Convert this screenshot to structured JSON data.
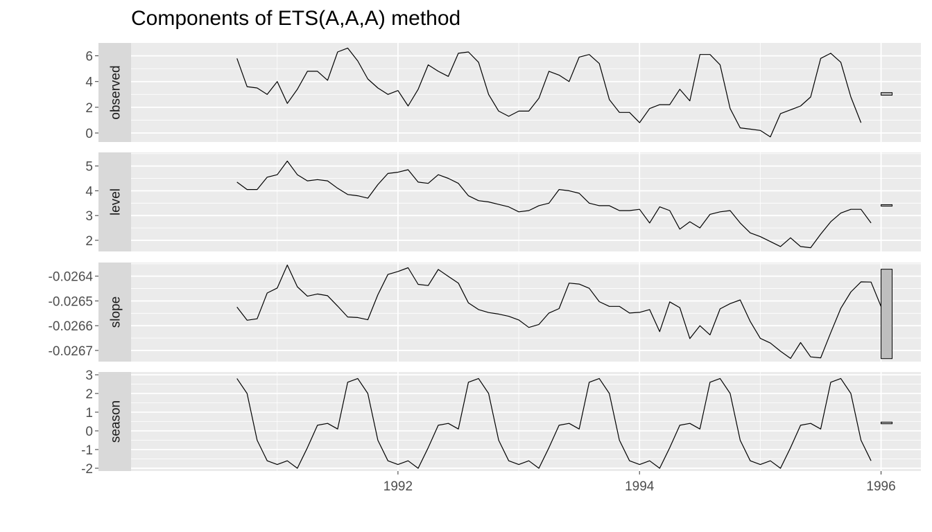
{
  "chart_data": {
    "type": "line",
    "title": "Components of ETS(A,A,A) method",
    "xlabel": "",
    "ylabel": "",
    "x_start": 1990.667,
    "x_step": 0.0833333,
    "xlim": [
      1989.79,
      1996.33
    ],
    "x_ticks": [
      "1992",
      "1994",
      "1996"
    ],
    "grid": true,
    "panels": [
      {
        "name": "observed",
        "ylim": [
          -0.7,
          7.0
        ],
        "y_ticks": [
          "0",
          "2",
          "4",
          "6"
        ],
        "scale_bar": [
          2.94,
          3.14
        ],
        "values": [
          5.8,
          3.6,
          3.5,
          3.0,
          4.0,
          2.3,
          3.4,
          4.8,
          4.8,
          4.1,
          6.3,
          6.6,
          5.6,
          4.2,
          3.5,
          3.0,
          3.3,
          2.1,
          3.4,
          5.3,
          4.8,
          4.4,
          6.2,
          6.3,
          5.5,
          3.0,
          1.7,
          1.3,
          1.7,
          1.7,
          2.7,
          4.8,
          4.5,
          4.0,
          5.9,
          6.1,
          5.4,
          2.6,
          1.6,
          1.6,
          0.8,
          1.9,
          2.2,
          2.2,
          3.4,
          2.5,
          6.1,
          6.1,
          5.3,
          1.9,
          0.4,
          0.3,
          0.2,
          -0.3,
          1.5,
          1.8,
          2.1,
          2.8,
          5.8,
          6.2,
          5.5,
          2.8,
          0.8
        ]
      },
      {
        "name": "level",
        "ylim": [
          1.55,
          5.55
        ],
        "y_ticks": [
          "2",
          "3",
          "4",
          "5"
        ],
        "scale_bar": [
          3.38,
          3.44
        ],
        "values": [
          4.35,
          4.05,
          4.05,
          4.55,
          4.65,
          5.2,
          4.65,
          4.4,
          4.45,
          4.4,
          4.1,
          3.85,
          3.8,
          3.7,
          4.25,
          4.7,
          4.75,
          4.85,
          4.35,
          4.3,
          4.65,
          4.5,
          4.3,
          3.8,
          3.6,
          3.55,
          3.45,
          3.35,
          3.15,
          3.2,
          3.4,
          3.5,
          4.05,
          4.0,
          3.9,
          3.5,
          3.4,
          3.4,
          3.2,
          3.2,
          3.25,
          2.7,
          3.35,
          3.2,
          2.45,
          2.75,
          2.5,
          3.05,
          3.15,
          3.2,
          2.7,
          2.3,
          2.15,
          1.95,
          1.75,
          2.1,
          1.75,
          1.7,
          2.25,
          2.75,
          3.1,
          3.25,
          3.25,
          2.7
        ]
      },
      {
        "name": "slope",
        "ylim": [
          -0.026745,
          -0.026345
        ],
        "y_ticks": [
          "-0.0264",
          "-0.0265",
          "-0.0266",
          "-0.0267"
        ],
        "scale_bar": [
          -0.026733,
          -0.026372
        ],
        "values": [
          -0.026525,
          -0.026578,
          -0.026572,
          -0.026468,
          -0.026448,
          -0.026355,
          -0.026443,
          -0.026481,
          -0.026472,
          -0.026479,
          -0.026521,
          -0.026565,
          -0.026567,
          -0.026576,
          -0.026475,
          -0.026393,
          -0.026381,
          -0.026366,
          -0.026433,
          -0.026438,
          -0.026373,
          -0.026401,
          -0.026428,
          -0.026508,
          -0.026535,
          -0.026547,
          -0.026553,
          -0.026562,
          -0.026577,
          -0.026607,
          -0.026595,
          -0.026549,
          -0.026531,
          -0.026428,
          -0.026432,
          -0.026449,
          -0.026503,
          -0.026522,
          -0.026522,
          -0.026549,
          -0.026546,
          -0.026535,
          -0.026624,
          -0.026504,
          -0.026527,
          -0.026652,
          -0.0266,
          -0.026637,
          -0.026532,
          -0.026511,
          -0.026496,
          -0.026583,
          -0.026651,
          -0.02667,
          -0.026703,
          -0.026732,
          -0.026668,
          -0.026726,
          -0.02673,
          -0.026628,
          -0.02653,
          -0.026464,
          -0.026423,
          -0.026424,
          -0.026523
        ]
      },
      {
        "name": "season",
        "ylim": [
          -2.15,
          3.15
        ],
        "y_ticks": [
          "-2",
          "-1",
          "0",
          "1",
          "2",
          "3"
        ],
        "scale_bar": [
          0.38,
          0.47
        ],
        "values": [
          2.8,
          2.0,
          -0.5,
          -1.6,
          -1.8,
          -1.6,
          -2.0,
          -0.9,
          0.3,
          0.4,
          0.1,
          2.6,
          2.8,
          2.0,
          -0.5,
          -1.6,
          -1.8,
          -1.6,
          -2.0,
          -0.9,
          0.3,
          0.4,
          0.1,
          2.6,
          2.8,
          2.0,
          -0.5,
          -1.6,
          -1.8,
          -1.6,
          -2.0,
          -0.9,
          0.3,
          0.4,
          0.1,
          2.6,
          2.8,
          2.0,
          -0.5,
          -1.6,
          -1.8,
          -1.6,
          -2.0,
          -0.9,
          0.3,
          0.4,
          0.1,
          2.6,
          2.8,
          2.0,
          -0.5,
          -1.6,
          -1.8,
          -1.6,
          -2.0,
          -0.9,
          0.3,
          0.4,
          0.1,
          2.6,
          2.8,
          2.0,
          -0.5,
          -1.6
        ]
      }
    ]
  },
  "colors": {
    "panel_bg": "#ebebeb",
    "grid_major": "#ffffff",
    "strip_bg": "#d9d9d9",
    "line": "#000000",
    "scale_bar_fill": "#bebebe"
  }
}
